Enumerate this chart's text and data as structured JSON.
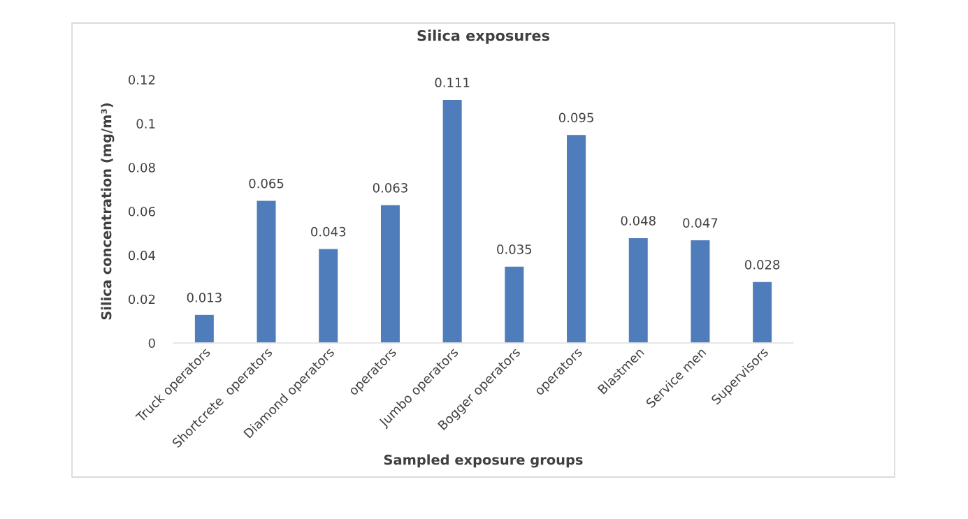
{
  "chart_data": {
    "type": "bar",
    "title": "Silica exposures",
    "xlabel": "Sampled exposure groups",
    "ylabel": "Silica concentration (mg/m³)",
    "categories": [
      "Truck operators",
      "Shortcrete  operators",
      "Diamond operators",
      "operators",
      "Jumbo operators",
      "Bogger operators",
      "operators",
      "Blastmen",
      "Service men",
      "Supervisors"
    ],
    "values": [
      0.013,
      0.065,
      0.043,
      0.063,
      0.111,
      0.035,
      0.095,
      0.048,
      0.047,
      0.028
    ],
    "color": "#4f7cba",
    "ylim": [
      0,
      0.12
    ],
    "yticks": [
      0,
      0.02,
      0.04,
      0.06,
      0.08,
      {
        "value": 0.1,
        "label": "0.1"
      },
      0.12
    ],
    "data_labels": true,
    "grid": false,
    "legend": false
  }
}
